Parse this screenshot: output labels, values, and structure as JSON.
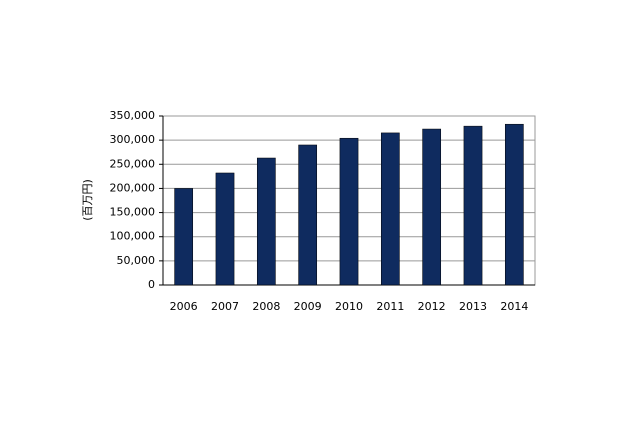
{
  "chart_data": {
    "type": "bar",
    "y_label": "(百万円)",
    "categories": [
      "2006",
      "2007",
      "2008",
      "2009",
      "2010",
      "2011",
      "2012",
      "2013",
      "2014"
    ],
    "values": [
      200000,
      232000,
      263000,
      290000,
      304000,
      315000,
      323000,
      329000,
      333000
    ],
    "color": "#0f2b5f",
    "ylim": [
      0,
      350000
    ],
    "yticks": [
      0,
      {
        "value": 50000,
        "label": "50,000"
      },
      {
        "value": 100000,
        "label": "100,000"
      },
      {
        "value": 150000,
        "label": "150,000"
      },
      {
        "value": 200000,
        "label": "200,000"
      },
      {
        "value": 250000,
        "label": "250,000"
      },
      {
        "value": 300000,
        "label": "300,000"
      },
      {
        "value": 350000,
        "label": "350,000"
      }
    ],
    "grid": true
  }
}
